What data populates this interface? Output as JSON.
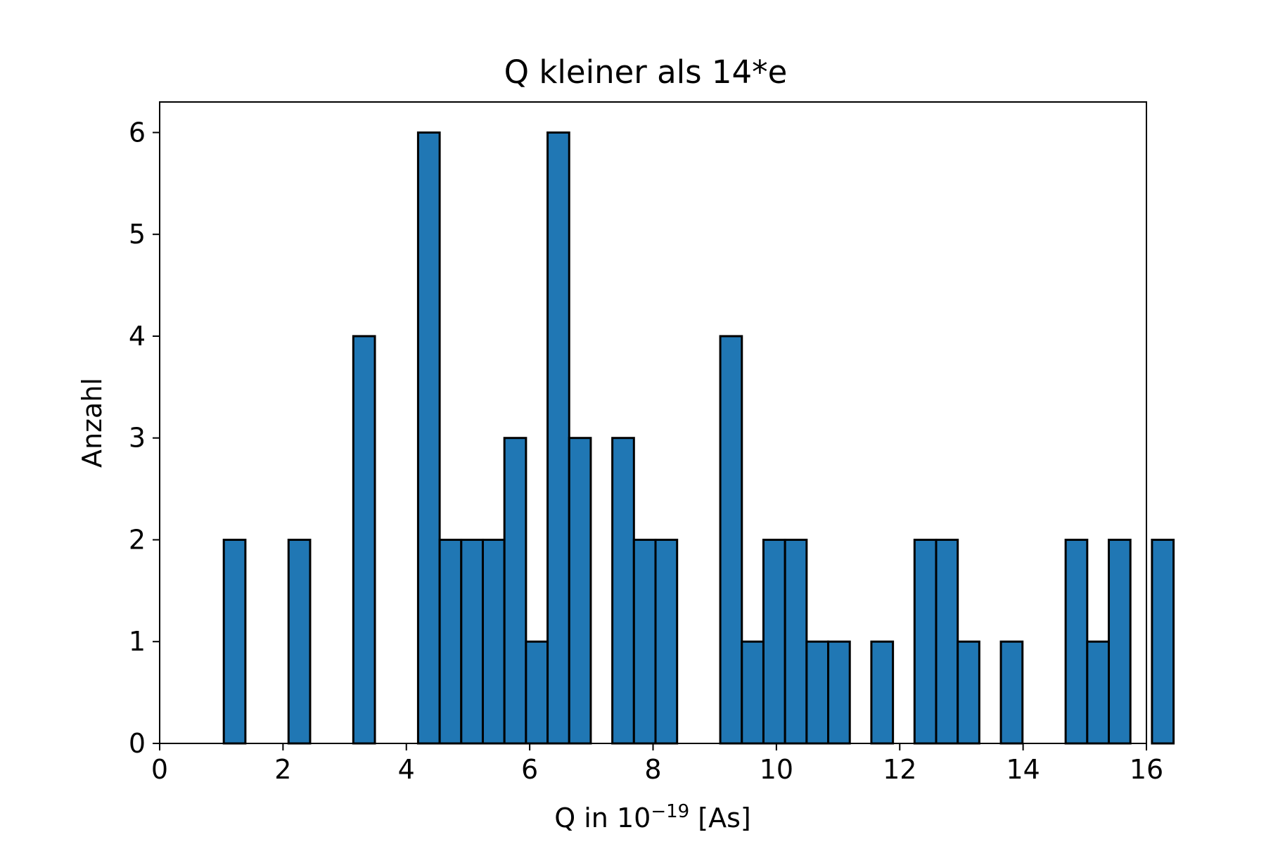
{
  "chart_data": {
    "type": "bar",
    "title": "Q kleiner als 14*e",
    "xlabel_prefix": "Q in 10",
    "xlabel_exponent": "−19",
    "xlabel_suffix": " [As]",
    "ylabel": "Anzahl",
    "xlim": [
      0,
      16
    ],
    "ylim": [
      0,
      6.3
    ],
    "xticks": [
      "0",
      "2",
      "4",
      "6",
      "8",
      "10",
      "12",
      "14",
      "16"
    ],
    "yticks": [
      "0",
      "1",
      "2",
      "3",
      "4",
      "5",
      "6"
    ],
    "grid": false,
    "legend": "none",
    "bar_color": "#2077b4",
    "edge_color": "#000000",
    "bins": {
      "start": 1.04,
      "width": 0.35,
      "counts": [
        2,
        0,
        0,
        2,
        0,
        0,
        4,
        0,
        0,
        6,
        2,
        2,
        2,
        3,
        1,
        6,
        3,
        0,
        3,
        2,
        2,
        0,
        0,
        4,
        1,
        2,
        2,
        1,
        1,
        0,
        1,
        0,
        2,
        2,
        1,
        0,
        1,
        0,
        0,
        2,
        1,
        2,
        0,
        2
      ]
    }
  }
}
